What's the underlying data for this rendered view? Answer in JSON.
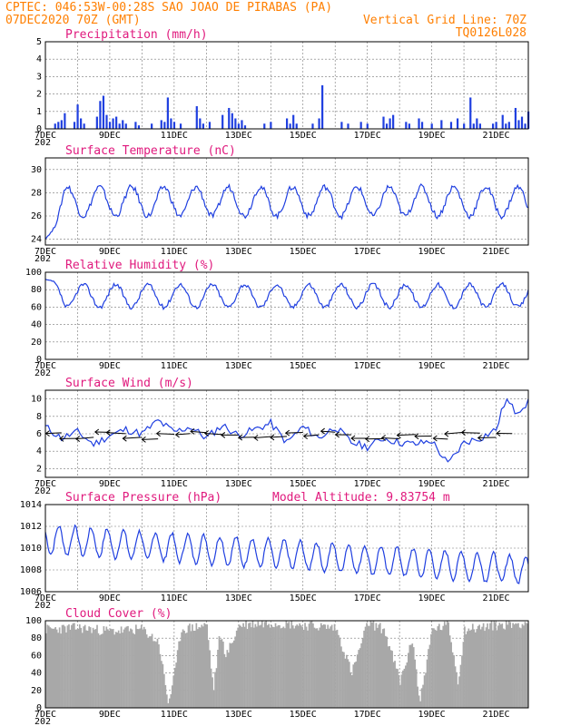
{
  "header": {
    "line1_left": "CPTEC:  046:53W-00:28S  SAO JOAO DE PIRABAS (PA)",
    "line2_left": "07DEC2020 70Z (GMT)",
    "line2_right": "Vertical Grid Line: 70Z",
    "line3_right": "TQ0126L028"
  },
  "x_axis": {
    "ticks": [
      "7DEC",
      "9DEC",
      "11DEC",
      "13DEC",
      "15DEC",
      "17DEC",
      "19DEC",
      "21DEC"
    ],
    "year_stub": "202",
    "range_days": [
      0,
      15
    ]
  },
  "colors": {
    "header": "#ff7f00",
    "title": "#e0197d",
    "series": "#1f3fe0",
    "cloud": "#a8a8a8"
  },
  "chart_data": [
    {
      "id": "precip",
      "type": "bar",
      "title": "Precipitation (mm/h)",
      "ylim": [
        0,
        5
      ],
      "yticks": [
        0,
        1,
        2,
        3,
        4,
        5
      ],
      "x_days": [
        0.3,
        0.4,
        0.5,
        0.6,
        0.9,
        1.0,
        1.1,
        1.2,
        1.6,
        1.7,
        1.8,
        1.9,
        2.0,
        2.1,
        2.2,
        2.3,
        2.4,
        2.5,
        2.8,
        2.9,
        3.3,
        3.6,
        3.7,
        3.8,
        3.9,
        4.0,
        4.2,
        4.7,
        4.8,
        4.9,
        5.1,
        5.5,
        5.7,
        5.8,
        5.9,
        6.0,
        6.1,
        6.2,
        6.8,
        7.0,
        7.5,
        7.6,
        7.7,
        7.8,
        8.3,
        8.5,
        8.6,
        9.2,
        9.4,
        9.8,
        10.0,
        10.5,
        10.6,
        10.7,
        10.8,
        11.2,
        11.3,
        11.6,
        11.7,
        12.0,
        12.3,
        12.6,
        12.8,
        13.0,
        13.2,
        13.3,
        13.4,
        13.5,
        13.9,
        14.0,
        14.2,
        14.3,
        14.4,
        14.6,
        14.7,
        14.8,
        14.9,
        15.0
      ],
      "values": [
        0.3,
        0.4,
        0.5,
        0.9,
        0.4,
        1.4,
        0.6,
        0.3,
        0.7,
        1.6,
        1.9,
        0.8,
        0.4,
        0.6,
        0.7,
        0.3,
        0.5,
        0.3,
        0.4,
        0.2,
        0.3,
        0.5,
        0.4,
        1.8,
        0.6,
        0.4,
        0.3,
        1.3,
        0.6,
        0.3,
        0.4,
        0.8,
        1.2,
        0.9,
        0.6,
        0.3,
        0.5,
        0.2,
        0.3,
        0.4,
        0.6,
        0.3,
        0.8,
        0.3,
        0.3,
        0.6,
        2.5,
        0.4,
        0.3,
        0.4,
        0.3,
        0.7,
        0.3,
        0.6,
        0.8,
        0.4,
        0.3,
        0.6,
        0.4,
        0.3,
        0.5,
        0.4,
        0.6,
        0.3,
        1.8,
        0.3,
        0.6,
        0.3,
        0.3,
        0.4,
        0.8,
        0.3,
        0.4,
        1.2,
        0.5,
        0.7,
        0.3,
        1.0
      ]
    },
    {
      "id": "temp",
      "type": "line",
      "title": "Surface Temperature (nC)",
      "ylim": [
        23.5,
        31
      ],
      "yticks": [
        24,
        26,
        28,
        30
      ],
      "daily": {
        "min": 26.0,
        "max": 28.5,
        "peak_hour_frac": 0.68,
        "start": 24.0
      }
    },
    {
      "id": "rh",
      "type": "line",
      "title": "Relative Humidity (%)",
      "ylim": [
        0,
        100
      ],
      "yticks": [
        0,
        20,
        40,
        60,
        80,
        100
      ],
      "daily": {
        "min": 60,
        "max": 86,
        "trough_hour_frac": 0.68,
        "start": 92
      }
    },
    {
      "id": "wind",
      "type": "line",
      "title": "Surface Wind (m/s)",
      "ylim": [
        1,
        11
      ],
      "yticks": [
        2,
        4,
        6,
        8,
        10
      ],
      "x_days": [
        0,
        0.5,
        1.0,
        1.5,
        2.0,
        2.5,
        3.0,
        3.5,
        4.0,
        4.5,
        5.0,
        5.5,
        6.0,
        6.5,
        7.0,
        7.5,
        8.0,
        8.5,
        9.0,
        9.5,
        10.0,
        10.5,
        11.0,
        11.5,
        12.0,
        12.5,
        13.0,
        13.5,
        14.0,
        14.3,
        14.6,
        15.0
      ],
      "values": [
        6.8,
        5.5,
        6.2,
        4.8,
        5.8,
        6.5,
        6.0,
        7.5,
        6.2,
        6.8,
        5.5,
        7.0,
        5.8,
        6.5,
        7.2,
        5.0,
        6.8,
        5.5,
        6.8,
        5.0,
        4.5,
        5.5,
        5.0,
        4.8,
        5.2,
        2.5,
        5.0,
        5.5,
        6.5,
        10.0,
        8.5,
        9.6
      ],
      "vectors_every_days": 0.5,
      "vector_speed_scale": 0.22
    },
    {
      "id": "pres",
      "type": "line",
      "title": "Surface Pressure (hPa)",
      "ylim": [
        1006,
        1014
      ],
      "yticks": [
        1006,
        1008,
        1010,
        1012,
        1014
      ],
      "annotation": "Model Altitude:  9.83754  m",
      "semidiurnal": {
        "mean_start": 1010.8,
        "mean_end": 1008.0,
        "amp": 1.3
      }
    },
    {
      "id": "cloud",
      "type": "area",
      "title": "Cloud Cover (%)",
      "ylim": [
        0,
        100
      ],
      "yticks": [
        0,
        20,
        40,
        60,
        80,
        100
      ],
      "x_days": [
        0,
        1,
        2,
        3,
        3.5,
        3.8,
        4.0,
        4.2,
        5.0,
        5.2,
        5.4,
        5.6,
        6.0,
        7.0,
        8.0,
        9.0,
        9.5,
        10.0,
        10.5,
        11.0,
        11.4,
        11.6,
        12.0,
        12.5,
        12.8,
        13.0,
        14.0,
        15.0
      ],
      "values": [
        90,
        92,
        88,
        90,
        75,
        5,
        40,
        90,
        95,
        20,
        85,
        60,
        95,
        98,
        95,
        92,
        40,
        98,
        90,
        30,
        80,
        5,
        90,
        95,
        30,
        90,
        95,
        98
      ]
    }
  ]
}
